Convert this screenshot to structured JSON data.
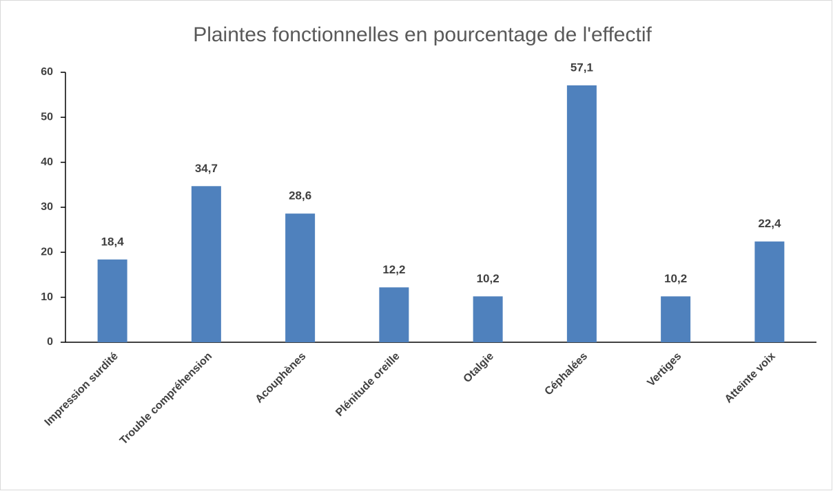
{
  "chart_data": {
    "type": "bar",
    "title": "Plaintes fonctionnelles en pourcentage de l'effectif",
    "categories": [
      "Impression surdité",
      "Trouble compréhension",
      "Acouphènes",
      "Plénitude oreille",
      "Otalgie",
      "Céphalées",
      "Vertiges",
      "Atteinte voix"
    ],
    "values": [
      18.4,
      34.7,
      28.6,
      12.2,
      10.2,
      57.1,
      10.2,
      22.4
    ],
    "value_labels": [
      "18,4",
      "34,7",
      "28,6",
      "12,2",
      "10,2",
      "57,1",
      "10,2",
      "22,4"
    ],
    "color": "#4f81bd",
    "ylim": [
      0,
      60
    ],
    "yticks": [
      0,
      10,
      20,
      30,
      40,
      50,
      60
    ],
    "grid": false
  }
}
